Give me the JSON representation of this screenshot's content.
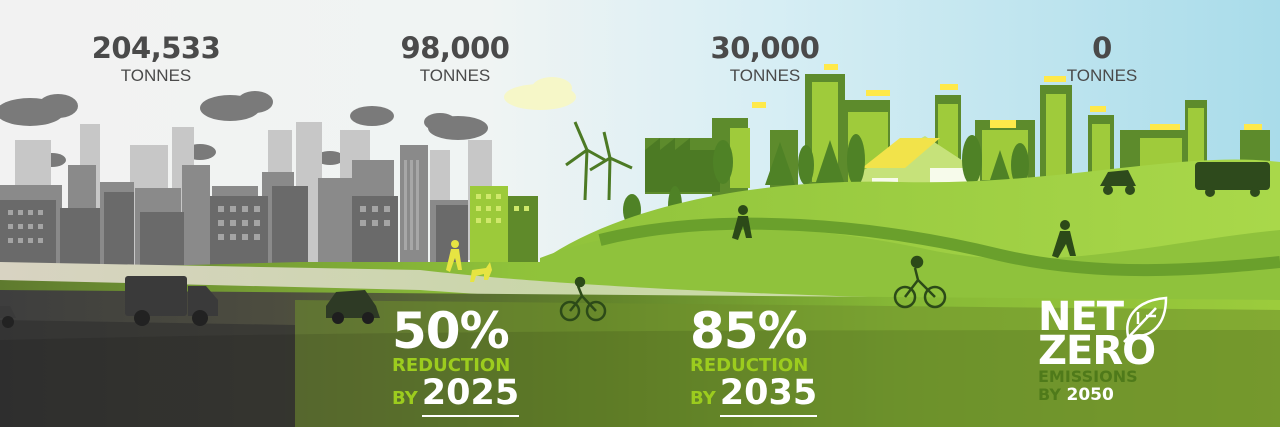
{
  "colors": {
    "sky": "#cfe9f2",
    "city_gray": "#6f6f6f",
    "grass_light": "#9fd039",
    "grass_dark": "#6a9a2c",
    "accent_green": "#9ccc1e",
    "stat_text": "#4a4a4a"
  },
  "stats": [
    {
      "value": "204,533",
      "unit": "TONNES"
    },
    {
      "value": "98,000",
      "unit": "TONNES"
    },
    {
      "value": "30,000",
      "unit": "TONNES"
    },
    {
      "value": "0",
      "unit": "TONNES"
    }
  ],
  "targets": [
    {
      "percent": "50%",
      "label": "REDUCTION",
      "by": "BY",
      "year": "2025"
    },
    {
      "percent": "85%",
      "label": "REDUCTION",
      "by": "BY",
      "year": "2035"
    }
  ],
  "net_zero": {
    "line1": "NET",
    "line2": "ZERO",
    "line3": "EMISSIONS",
    "by": "BY",
    "year": "2050",
    "icon": "leaf-icon"
  }
}
